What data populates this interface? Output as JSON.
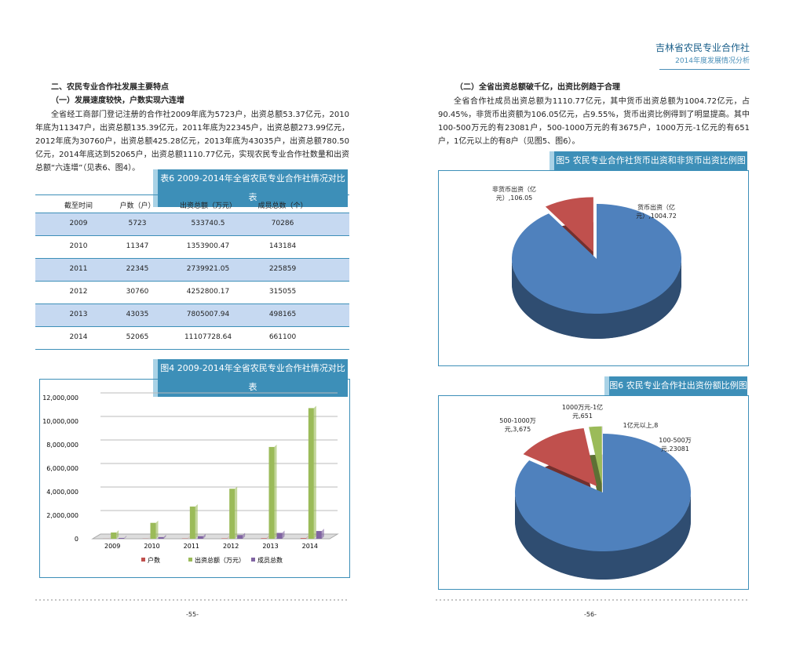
{
  "header": {
    "title": "吉林省农民专业合作社",
    "subtitle": "2014年度发展情况分析"
  },
  "left": {
    "heading": "二、农民专业合作社发展主要特点",
    "subheading": "（一）发展速度较快，户数实现六连增",
    "paragraph": "全省经工商部门登记注册的合作社2009年底为5723户，出资总额53.37亿元，2010年底为11347户，出资总额135.39亿元，2011年底为22345户，出资总额273.99亿元，2012年底为30760户，出资总额425.28亿元，2013年底为43035户，出资总额780.50亿元，2014年底达到52065户，出资总额1110.77亿元，实现农民专业合作社数量和出资总额“六连增”（见表6、图4）。",
    "table": {
      "title": "表6  2009-2014年全省农民专业合作社情况对比表",
      "columns": [
        "截至时间",
        "户数（户）",
        "出资总额（万元）",
        "成员总数（个）"
      ],
      "rows": [
        [
          "2009",
          "5723",
          "533740.5",
          "70286"
        ],
        [
          "2010",
          "11347",
          "1353900.47",
          "143184"
        ],
        [
          "2011",
          "22345",
          "2739921.05",
          "225859"
        ],
        [
          "2012",
          "30760",
          "4252800.17",
          "315055"
        ],
        [
          "2013",
          "43035",
          "7805007.94",
          "498165"
        ],
        [
          "2014",
          "52065",
          "11107728.64",
          "661100"
        ]
      ]
    },
    "figure4": {
      "type": "bar",
      "title": "图4  2009-2014年全省农民专业合作社情况对比表",
      "categories": [
        "2009",
        "2010",
        "2011",
        "2012",
        "2013",
        "2014"
      ],
      "series": [
        {
          "name": "户数",
          "color": "#c0504d",
          "values": [
            5723,
            11347,
            22345,
            30760,
            43035,
            52065
          ]
        },
        {
          "name": "出资总额（万元）",
          "color": "#9bbb59",
          "values": [
            533740.5,
            1353900.47,
            2739921.05,
            4252800.17,
            7805007.94,
            11107728.64
          ]
        },
        {
          "name": "成员总数",
          "color": "#8064a2",
          "values": [
            70286,
            143184,
            225859,
            315055,
            498165,
            661100
          ]
        }
      ],
      "ylim": [
        0,
        12000000
      ],
      "yticks": [
        0,
        {
          "value": 2000000,
          "label": "2,000,000"
        },
        {
          "value": 4000000,
          "label": "4,000,000"
        },
        {
          "value": 6000000,
          "label": "6,000,000"
        },
        {
          "value": 8000000,
          "label": "8,000,000"
        },
        {
          "value": 10000000,
          "label": "10,000,000"
        },
        {
          "value": 12000000,
          "label": "12,000,000"
        }
      ],
      "grid": true
    },
    "page_number": "-55-"
  },
  "right": {
    "subheading": "（二）全省出资总额破千亿，出资比例趋于合理",
    "paragraph": "全省合作社成员出资总额为1110.77亿元，其中货币出资总额为1004.72亿元，占90.45%，非货币出资额为106.05亿元，占9.55%，货币出资比例得到了明显提高。其中100-500万元的有23081户，500-1000万元的有3675户，1000万元-1亿元的有651户，1亿元以上的有8户（见图5、图6）。",
    "figure5": {
      "type": "pie",
      "title": "图5  农民专业合作社货币出资和非货币出资比例图",
      "values": [
        1004.72,
        106.05
      ],
      "value_labels": [
        "货币出资（亿元）,1004.72",
        "非货币出资（亿元）,106.05"
      ],
      "colors": [
        "#4f81bd",
        "#c0504d"
      ]
    },
    "figure6": {
      "type": "pie",
      "title": "图6  农民专业合作社出资份额比例图",
      "values": [
        23081,
        3675,
        651,
        8
      ],
      "value_labels": [
        "100-500万元,23081",
        "500-1000万元,3,675",
        "1000万元-1亿元,651",
        "1亿元以上,8"
      ],
      "colors": [
        "#4f81bd",
        "#c0504d",
        "#9bbb59",
        "#8064a2"
      ]
    },
    "page_number": "-56-"
  }
}
